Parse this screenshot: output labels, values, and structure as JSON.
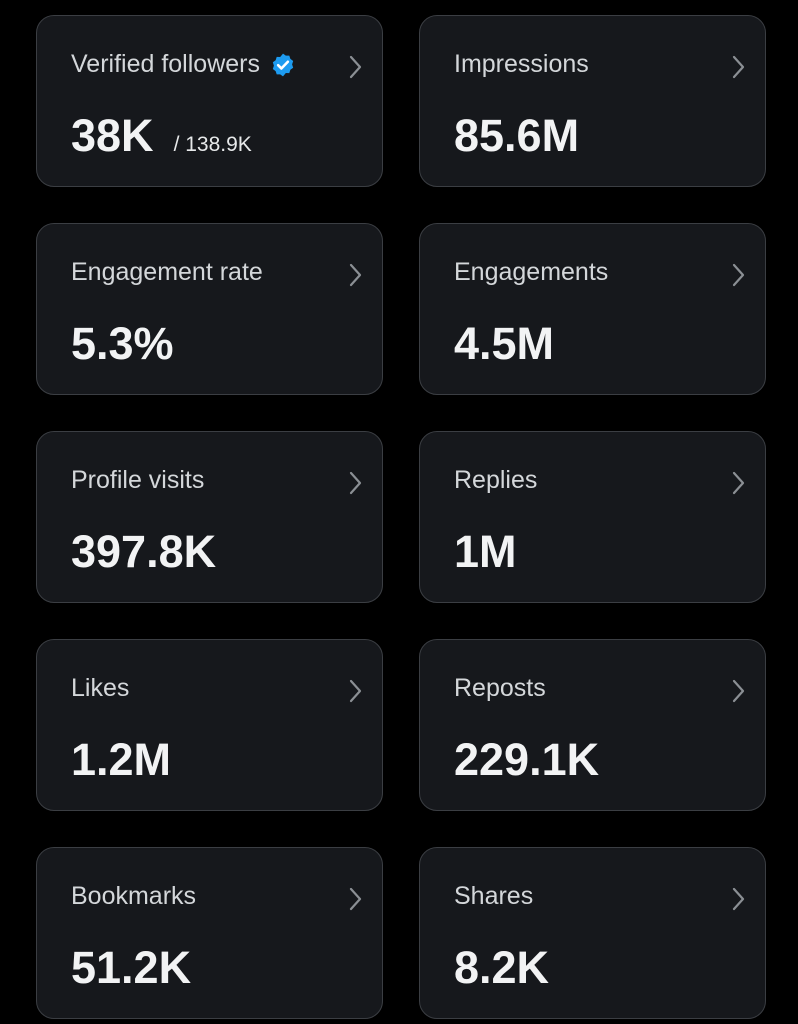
{
  "cards": [
    {
      "label": "Verified followers",
      "value": "38K",
      "subvalue": "/ 138.9K",
      "verified": true
    },
    {
      "label": "Impressions",
      "value": "85.6M"
    },
    {
      "label": "Engagement rate",
      "value": "5.3%"
    },
    {
      "label": "Engagements",
      "value": "4.5M"
    },
    {
      "label": "Profile visits",
      "value": "397.8K"
    },
    {
      "label": "Replies",
      "value": "1M"
    },
    {
      "label": "Likes",
      "value": "1.2M"
    },
    {
      "label": "Reposts",
      "value": "229.1K"
    },
    {
      "label": "Bookmarks",
      "value": "51.2K"
    },
    {
      "label": "Shares",
      "value": "8.2K"
    }
  ]
}
